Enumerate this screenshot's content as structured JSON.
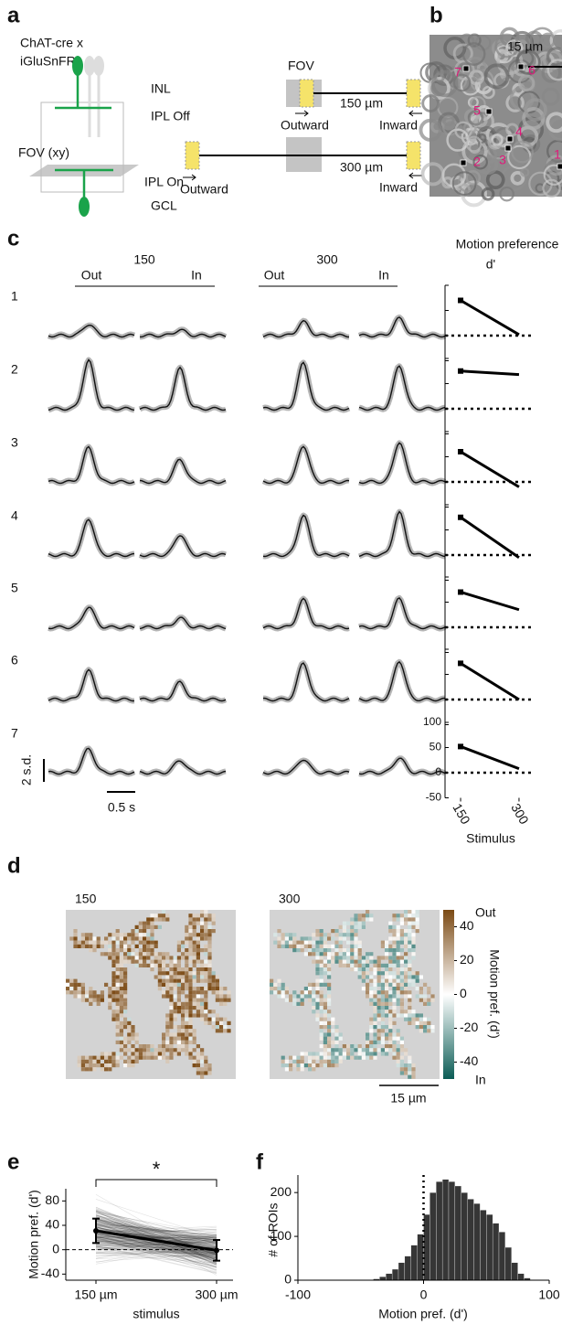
{
  "panel_labels": [
    "a",
    "b",
    "c",
    "d",
    "e",
    "f"
  ],
  "schematic": {
    "line1": "ChAT-cre x",
    "line2": "iGluSnFR",
    "layers": [
      "INL",
      "IPL Off",
      "FOV (xy)",
      "IPL On",
      "GCL"
    ],
    "fov": "FOV",
    "short_distance": "150 µm",
    "long_distance": "300 µm",
    "outward": "Outward",
    "inward": "Inward"
  },
  "image": {
    "scale_bar": "15 µm",
    "rois": [
      "1",
      "2",
      "3",
      "4",
      "5",
      "6",
      "7"
    ]
  },
  "chart_data": [
    {
      "type": "traces",
      "stimuli": [
        "150",
        "300"
      ],
      "directions": [
        "Out",
        "In",
        "Out",
        "In"
      ],
      "rows": [
        "1",
        "2",
        "3",
        "4",
        "5",
        "6",
        "7"
      ],
      "peaks": [
        [
          1.0,
          0.5,
          1.2,
          1.5
        ],
        [
          4.2,
          3.5,
          4.0,
          3.8
        ],
        [
          3.0,
          2.0,
          3.2,
          3.5
        ],
        [
          3.2,
          1.8,
          3.5,
          3.7
        ],
        [
          1.8,
          0.8,
          2.4,
          2.5
        ],
        [
          2.5,
          1.5,
          3.2,
          3.4
        ],
        [
          2.1,
          1.1,
          1.2,
          1.3
        ]
      ],
      "scale_y": {
        "value": 2,
        "label": "2 s.d."
      },
      "scale_x": {
        "value": 0.5,
        "label": "0.5 s"
      }
    },
    {
      "type": "line",
      "title": "Motion preference",
      "ylabel": "d'",
      "xlabel": "Stimulus",
      "x": [
        150,
        300
      ],
      "xlim": [
        110,
        340
      ],
      "xticks": [
        150,
        300
      ],
      "ylim": [
        -50,
        100
      ],
      "yticks": [
        -50,
        0,
        50,
        100
      ],
      "series": [
        {
          "values": [
            70,
            2
          ]
        },
        {
          "values": [
            75,
            68
          ]
        },
        {
          "values": [
            60,
            -10
          ]
        },
        {
          "values": [
            75,
            -5
          ]
        },
        {
          "values": [
            70,
            35
          ]
        },
        {
          "values": [
            72,
            0
          ]
        },
        {
          "values": [
            52,
            8
          ]
        }
      ],
      "color": "#000000",
      "zero_line": "dotted"
    },
    {
      "type": "heatmap",
      "panels": [
        "150",
        "300"
      ],
      "clim": [
        -50,
        50
      ],
      "cticks": [
        -40,
        -20,
        0,
        20,
        40
      ],
      "colorbar_label": "Motion pref. (d')",
      "high_label": "Out",
      "low_label": "In",
      "scale_bar": "15 µm",
      "colormap": [
        "#0a5c55",
        "#ffffff",
        "#7b4a14"
      ],
      "background": "#d3d3d3"
    },
    {
      "type": "line",
      "categories": [
        "150 µm",
        "300 µm"
      ],
      "values": [
        31,
        -1
      ],
      "errors": [
        20,
        17
      ],
      "ylim": [
        -50,
        100
      ],
      "yticks": [
        -40,
        0,
        40,
        80
      ],
      "ylabel": "Motion pref. (d')",
      "xlabel": "stimulus",
      "annotation": "*",
      "color": "#000000",
      "zero_line": "dashed"
    },
    {
      "type": "histogram",
      "bins": [
        -45,
        -40,
        -35,
        -30,
        -25,
        -20,
        -15,
        -10,
        -5,
        0,
        5,
        10,
        15,
        20,
        25,
        30,
        35,
        40,
        45,
        50,
        55,
        60,
        65,
        70,
        75,
        80,
        85
      ],
      "counts": [
        1,
        3,
        8,
        15,
        25,
        40,
        55,
        80,
        105,
        150,
        200,
        225,
        230,
        225,
        215,
        200,
        185,
        175,
        160,
        150,
        130,
        110,
        75,
        40,
        15,
        5
      ],
      "xlim": [
        -100,
        100
      ],
      "xticks": [
        -100,
        0,
        100
      ],
      "ylim": [
        0,
        240
      ],
      "yticks": [
        0,
        100,
        200
      ],
      "xlabel": "Motion pref. (d')",
      "ylabel": "# of ROIs",
      "color": "#363636",
      "zero_line": "dotted"
    }
  ]
}
